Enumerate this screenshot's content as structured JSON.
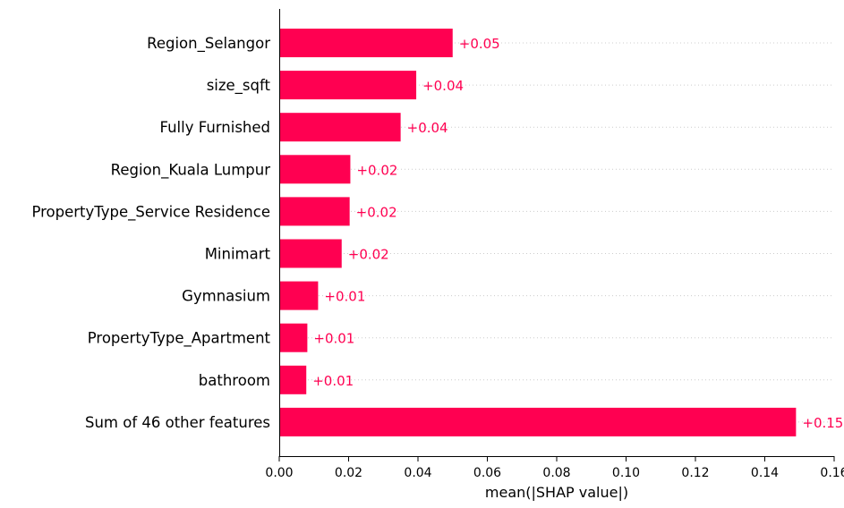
{
  "chart_data": {
    "type": "bar",
    "orientation": "horizontal",
    "categories": [
      "Region_Selangor",
      "size_sqft",
      "Fully Furnished",
      "Region_Kuala Lumpur",
      "PropertyType_Service Residence",
      "Minimart",
      "Gymnasium",
      "PropertyType_Apartment",
      "bathroom",
      "Sum of 46 other features"
    ],
    "values": [
      0.05,
      0.0395,
      0.035,
      0.0205,
      0.0203,
      0.018,
      0.0112,
      0.0081,
      0.0078,
      0.149
    ],
    "value_labels": [
      "+0.05",
      "+0.04",
      "+0.04",
      "+0.02",
      "+0.02",
      "+0.02",
      "+0.01",
      "+0.01",
      "+0.01",
      "+0.15"
    ],
    "xlabel": "mean(|SHAP value|)",
    "ylabel": "",
    "title": "",
    "xlim": [
      0,
      0.16
    ],
    "xticks": [
      0.0,
      0.02,
      0.04,
      0.06,
      0.08,
      0.1,
      0.12,
      0.14,
      0.16
    ],
    "xtick_labels": [
      "0.00",
      "0.02",
      "0.04",
      "0.06",
      "0.08",
      "0.10",
      "0.12",
      "0.14",
      "0.16"
    ],
    "bar_color": "#ff0051",
    "label_color": "#ff0051",
    "gridlines": "dotted horizontal guide per row"
  }
}
